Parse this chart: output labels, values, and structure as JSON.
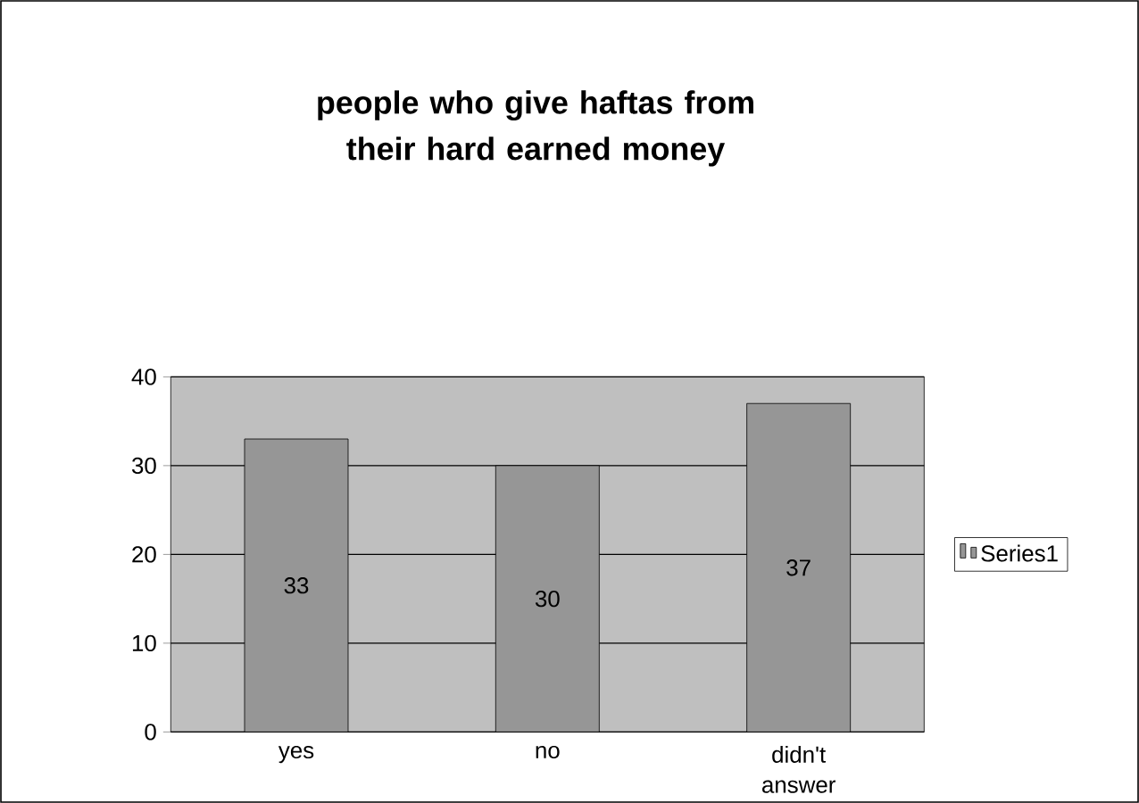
{
  "chart_data": {
    "type": "bar",
    "title": "people who give haftas from their hard earned money",
    "categories": [
      "yes",
      "no",
      "didn't answer"
    ],
    "series": [
      {
        "name": "Series1",
        "color": "#969696",
        "values": [
          33,
          30,
          37
        ]
      }
    ],
    "ylim": [
      0,
      40
    ],
    "yticks": [
      0,
      10,
      20,
      30,
      40
    ],
    "grid": "y",
    "legend": "right",
    "data_labels": true
  }
}
